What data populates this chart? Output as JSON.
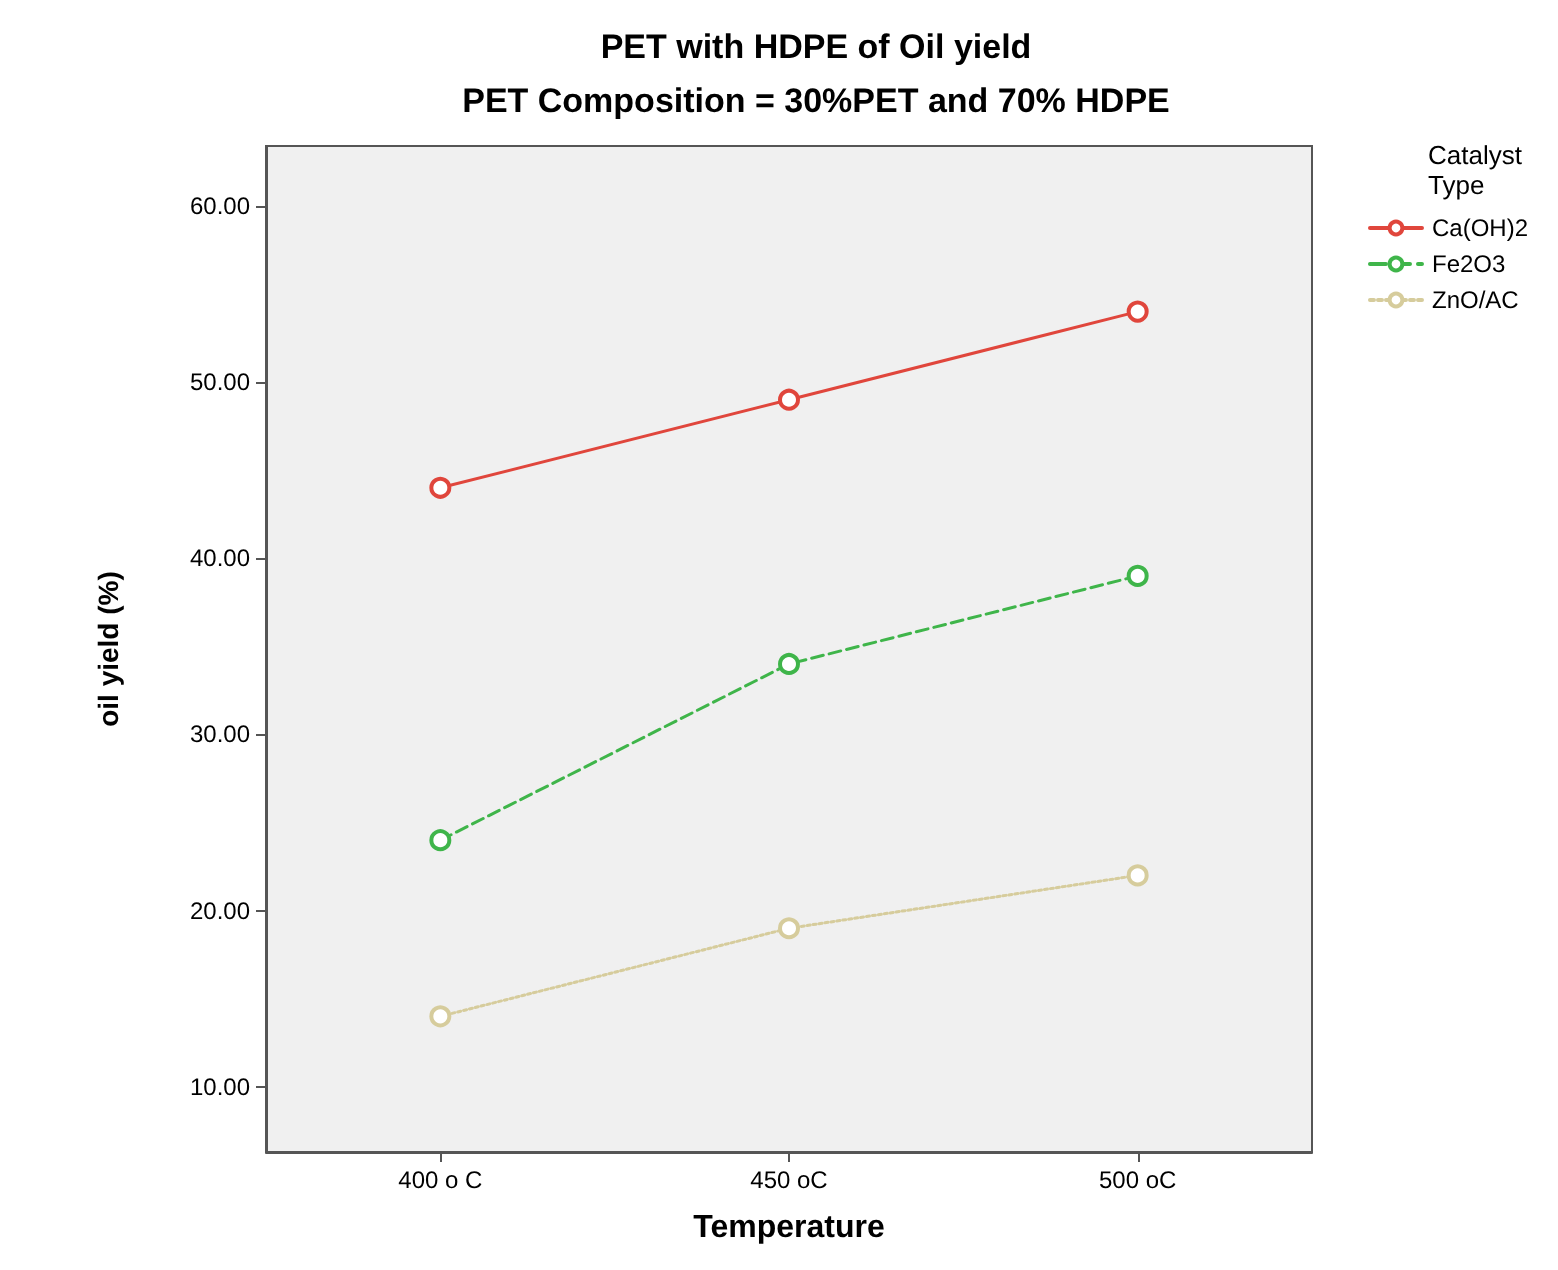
{
  "chart_data": {
    "type": "line",
    "title": "PET with HDPE of Oil yield",
    "subtitle": "PET Composition = 30%PET and 70% HDPE",
    "xlabel": "Temperature",
    "ylabel": "oil yield (%)",
    "legend_title": "Catalyst Type",
    "categories": [
      "400 o C",
      "450 oC",
      "500 oC"
    ],
    "series": [
      {
        "name": "Ca(OH)2",
        "color": "#e0463c",
        "line_style": "solid",
        "values": [
          44,
          49,
          54
        ]
      },
      {
        "name": "Fe2O3",
        "color": "#3fb54a",
        "line_style": "dashed",
        "values": [
          24,
          34,
          39
        ]
      },
      {
        "name": "ZnO/AC",
        "color": "#d6cc9c",
        "line_style": "dotted",
        "values": [
          14,
          19,
          22
        ]
      }
    ],
    "ylim": [
      6.3,
      63.4
    ],
    "yticks": [
      {
        "value": 10,
        "label": "10.00"
      },
      {
        "value": 20,
        "label": "20.00"
      },
      {
        "value": 30,
        "label": "30.00"
      },
      {
        "value": 40,
        "label": "40.00"
      },
      {
        "value": 50,
        "label": "50.00"
      },
      {
        "value": 60,
        "label": "60.00"
      }
    ],
    "marker": "circle",
    "grid": false,
    "legend": "right"
  }
}
